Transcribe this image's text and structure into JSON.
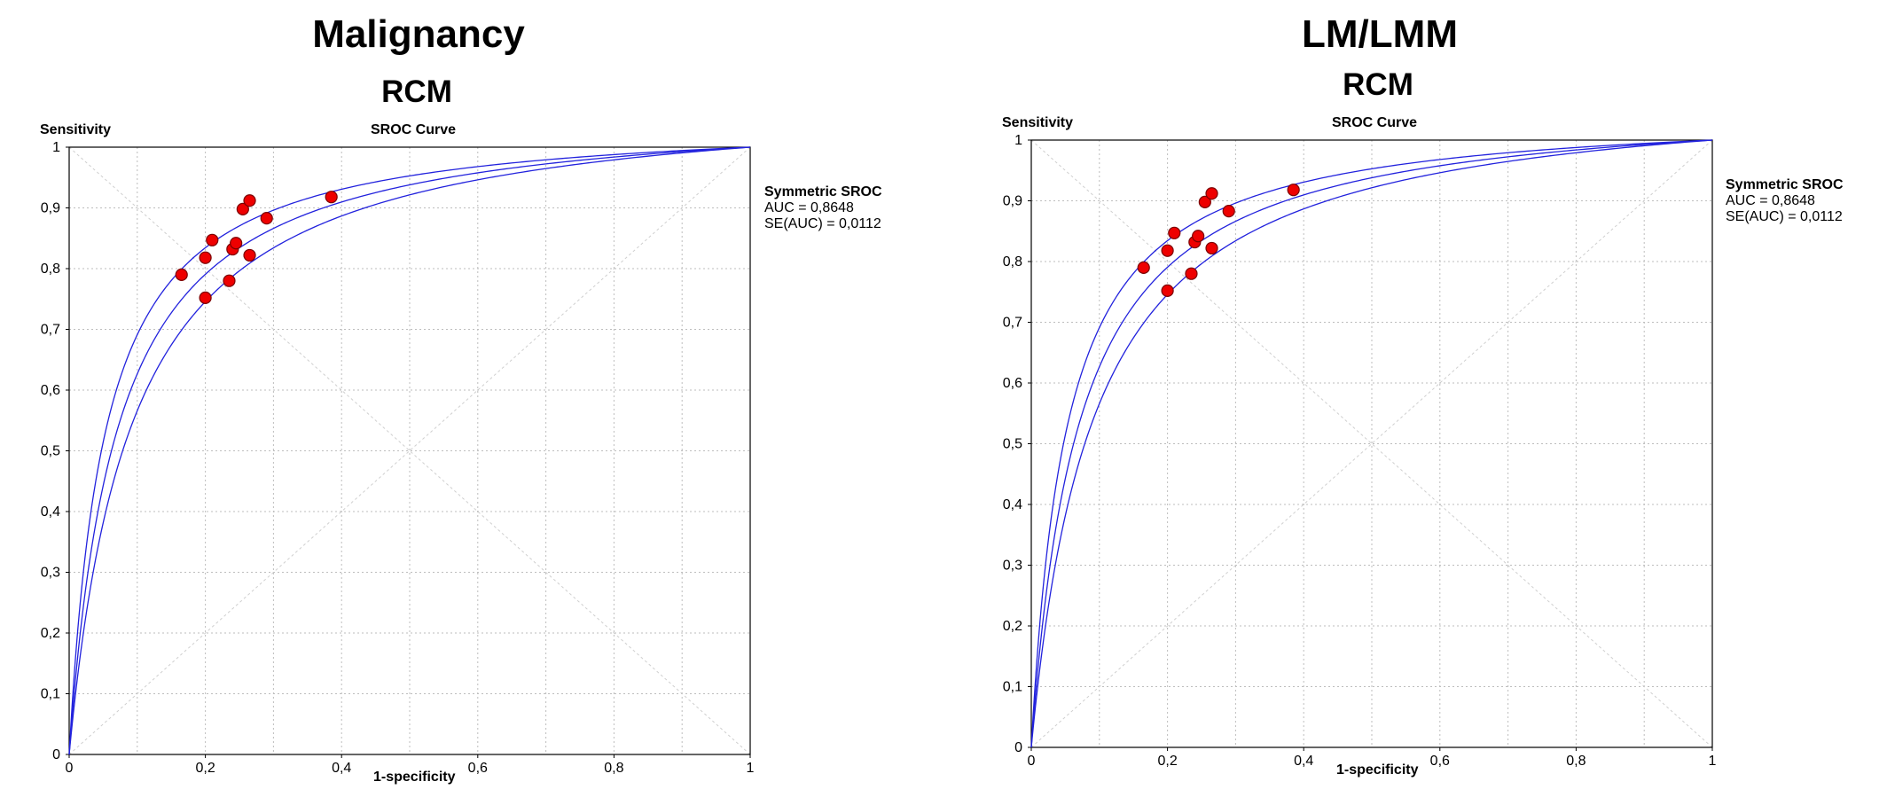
{
  "panels": [
    {
      "heading": "Malignancy",
      "subheading": "RCM",
      "chart_data": {
        "type": "scatter",
        "title": "SROC Curve",
        "xlabel": "1-specificity",
        "ylabel": "Sensitivity",
        "xlim": [
          0,
          1
        ],
        "ylim": [
          0,
          1
        ],
        "x_ticks": [
          "0",
          "0,2",
          "0,4",
          "0,6",
          "0,8",
          "1"
        ],
        "y_ticks": [
          "0",
          "0,1",
          "0,2",
          "0,3",
          "0,4",
          "0,5",
          "0,6",
          "0,7",
          "0,8",
          "0,9",
          "1"
        ],
        "grid": true,
        "legend_placement": "right",
        "legend": {
          "title": "Symmetric SROC",
          "auc": "AUC = 0,8648",
          "se": "SE(AUC) = 0,0112"
        },
        "curve_colors": "#2222dd",
        "point_color": "#ee0000",
        "curve_auc": 0.8648,
        "curve_band_auc": [
          0.8424,
          0.8872
        ],
        "points": [
          {
            "x": 0.165,
            "y": 0.79
          },
          {
            "x": 0.2,
            "y": 0.818
          },
          {
            "x": 0.21,
            "y": 0.847
          },
          {
            "x": 0.2,
            "y": 0.752
          },
          {
            "x": 0.235,
            "y": 0.78
          },
          {
            "x": 0.24,
            "y": 0.832
          },
          {
            "x": 0.245,
            "y": 0.842
          },
          {
            "x": 0.255,
            "y": 0.898
          },
          {
            "x": 0.265,
            "y": 0.912
          },
          {
            "x": 0.265,
            "y": 0.822
          },
          {
            "x": 0.29,
            "y": 0.883
          },
          {
            "x": 0.385,
            "y": 0.918
          }
        ]
      }
    },
    {
      "heading": "LM/LMM",
      "subheading": "RCM",
      "chart_data": {
        "type": "scatter",
        "title": "SROC Curve",
        "xlabel": "1-specificity",
        "ylabel": "Sensitivity",
        "xlim": [
          0,
          1
        ],
        "ylim": [
          0,
          1
        ],
        "x_ticks": [
          "0",
          "0,2",
          "0,4",
          "0,6",
          "0,8",
          "1"
        ],
        "y_ticks": [
          "0",
          "0,1",
          "0,2",
          "0,3",
          "0,4",
          "0,5",
          "0,6",
          "0,7",
          "0,8",
          "0,9",
          "1"
        ],
        "grid": true,
        "legend_placement": "right",
        "legend": {
          "title": "Symmetric SROC",
          "auc": "AUC = 0,8648",
          "se": "SE(AUC) = 0,0112"
        },
        "curve_colors": "#2222dd",
        "point_color": "#ee0000",
        "curve_auc": 0.8648,
        "curve_band_auc": [
          0.8424,
          0.8872
        ],
        "points": [
          {
            "x": 0.165,
            "y": 0.79
          },
          {
            "x": 0.2,
            "y": 0.818
          },
          {
            "x": 0.21,
            "y": 0.847
          },
          {
            "x": 0.2,
            "y": 0.752
          },
          {
            "x": 0.235,
            "y": 0.78
          },
          {
            "x": 0.24,
            "y": 0.832
          },
          {
            "x": 0.245,
            "y": 0.842
          },
          {
            "x": 0.255,
            "y": 0.898
          },
          {
            "x": 0.265,
            "y": 0.912
          },
          {
            "x": 0.265,
            "y": 0.822
          },
          {
            "x": 0.29,
            "y": 0.883
          },
          {
            "x": 0.385,
            "y": 0.918
          }
        ]
      }
    }
  ]
}
